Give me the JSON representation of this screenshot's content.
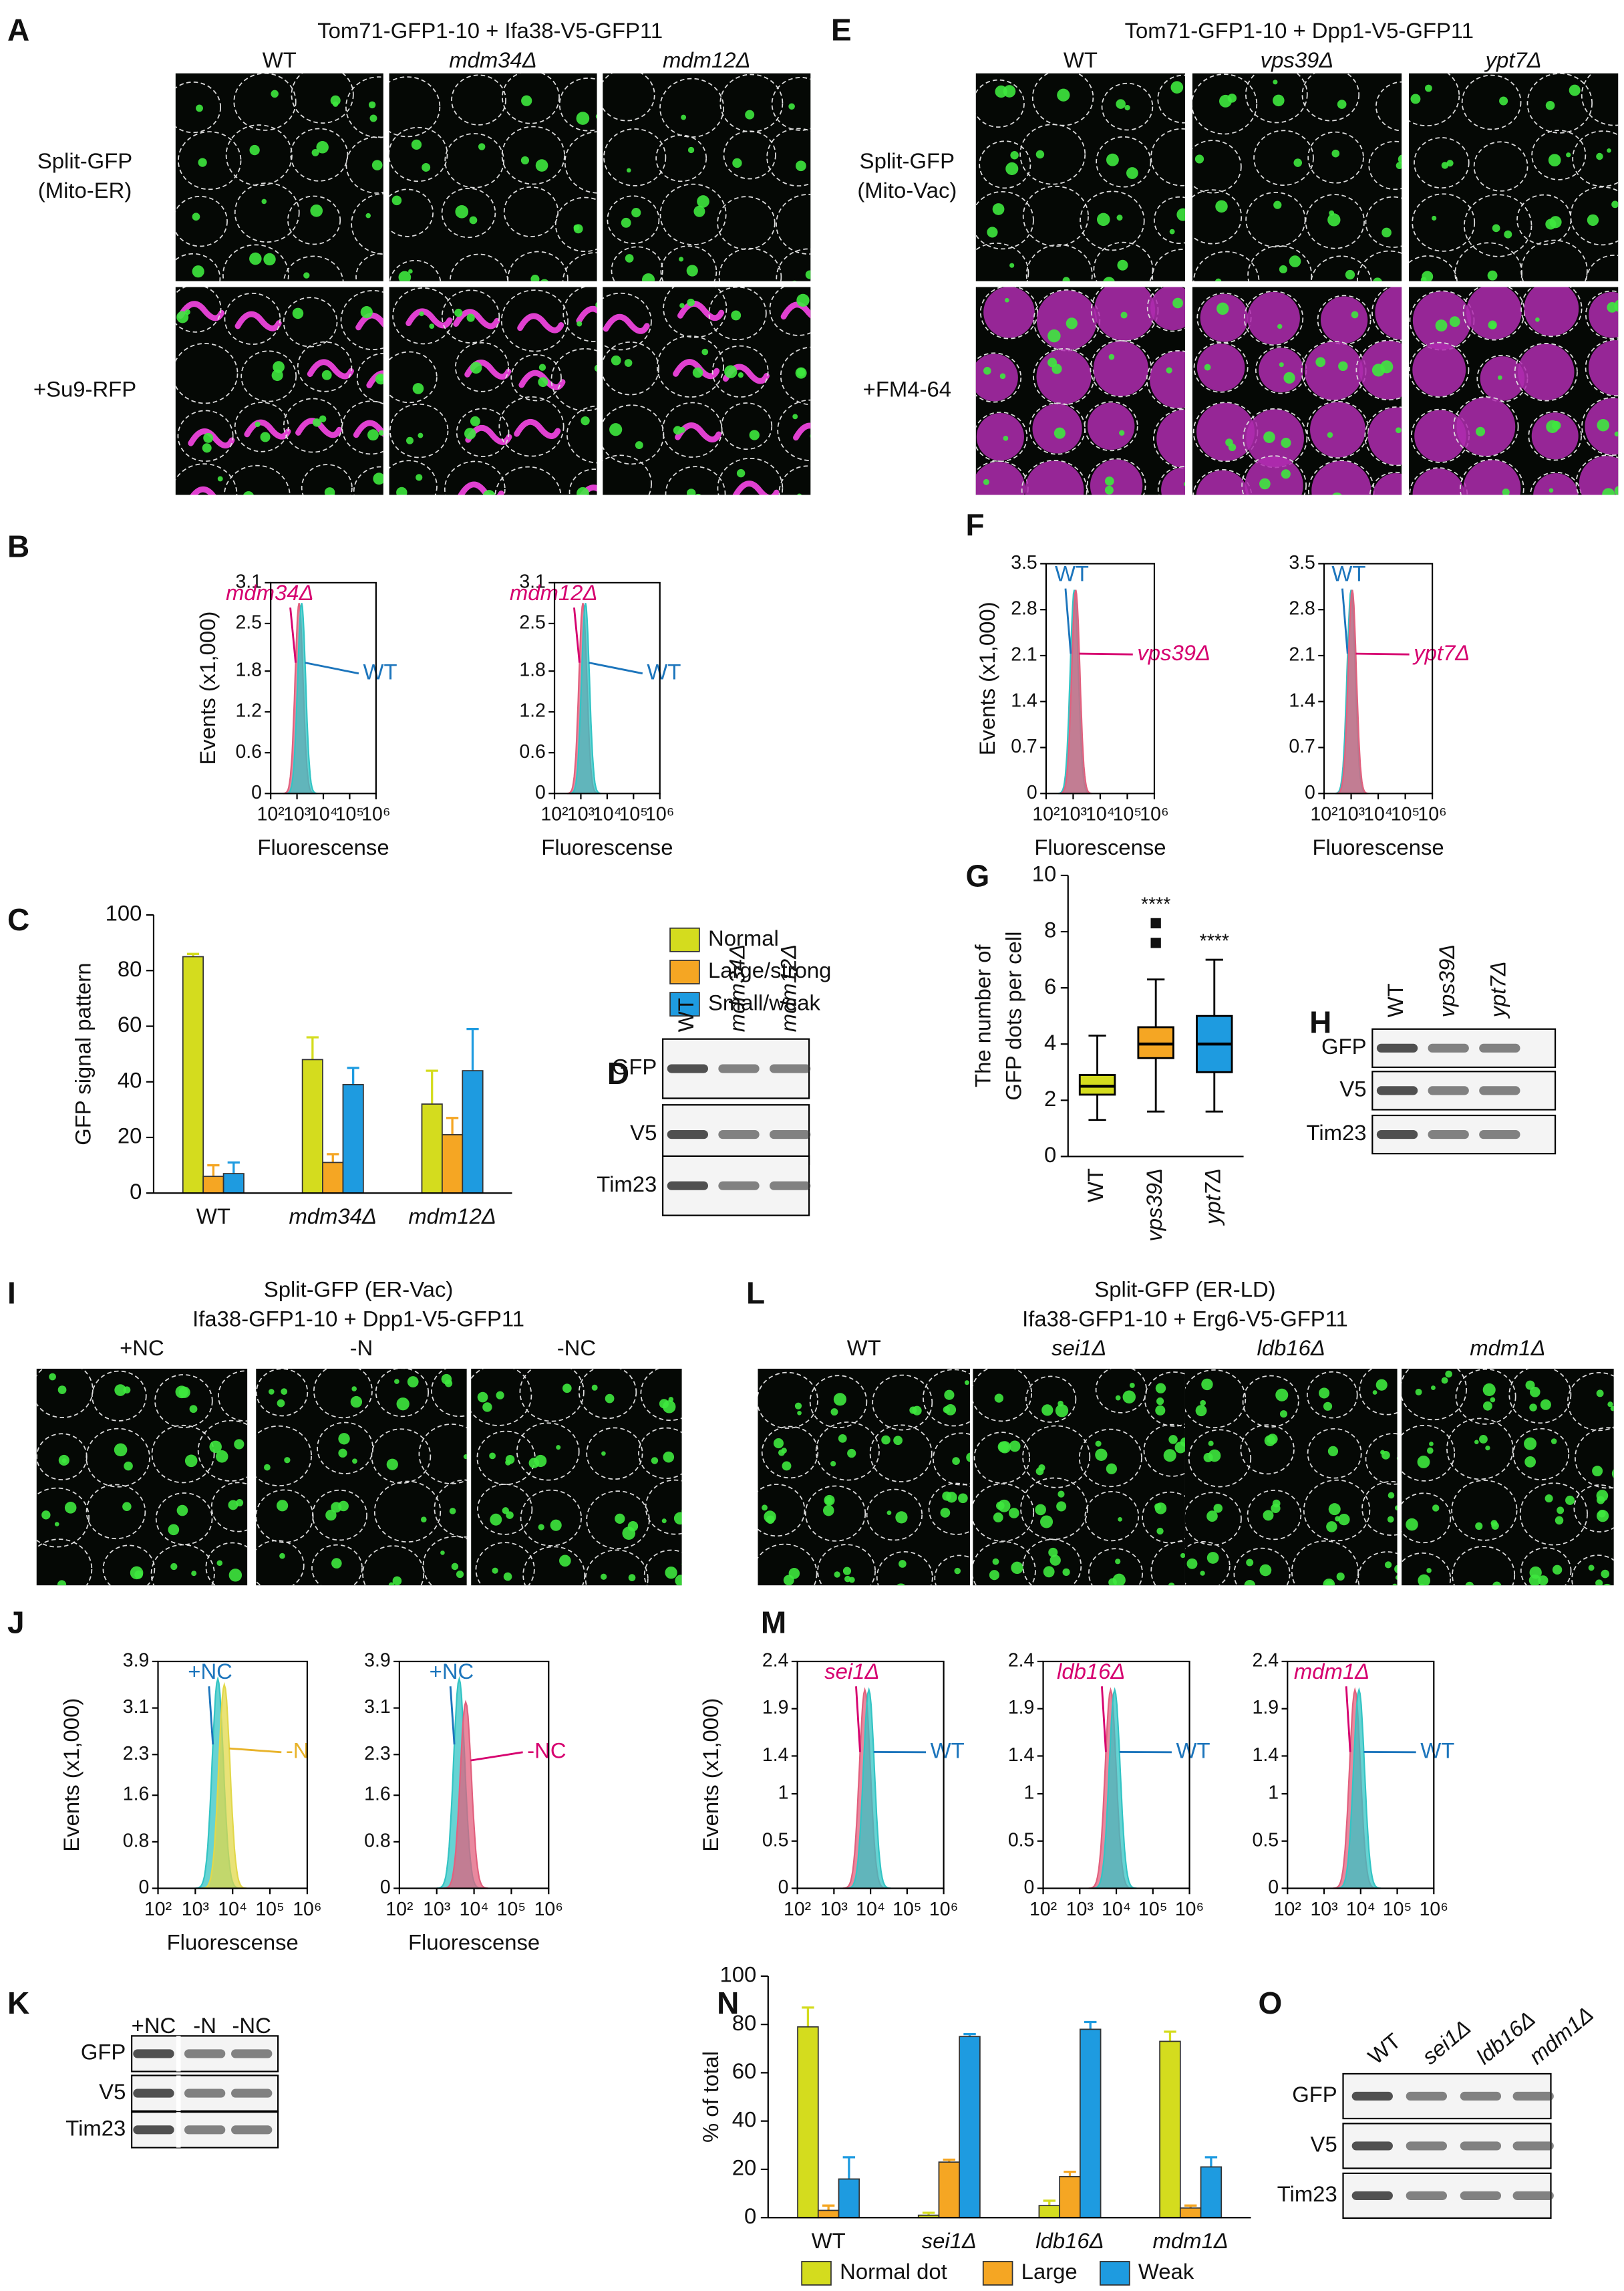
{
  "A": {
    "letter": "A",
    "title": [
      "Tom71-GFP1-10 + Ifa38-V5-GFP11"
    ],
    "columns": [
      "WT",
      "mdm34Δ",
      "mdm12Δ"
    ],
    "rows": [
      [
        "Split-GFP",
        "(Mito-ER)"
      ],
      [
        "+Su9-RFP"
      ]
    ]
  },
  "E": {
    "letter": "E",
    "title": [
      "Tom71-GFP1-10 + Dpp1-V5-GFP11"
    ],
    "columns": [
      "WT",
      "vps39Δ",
      "ypt7Δ"
    ],
    "rows": [
      [
        "Split-GFP",
        "(Mito-Vac)"
      ],
      [
        "+FM4-64"
      ]
    ]
  },
  "I": {
    "letter": "I",
    "title": [
      "Split-GFP (ER-Vac)",
      "Ifa38-GFP1-10 + Dpp1-V5-GFP11"
    ],
    "columns": [
      "+NC",
      "-N",
      "-NC"
    ]
  },
  "L": {
    "letter": "L",
    "title": [
      "Split-GFP (ER-LD)",
      "Ifa38-GFP1-10 + Erg6-V5-GFP11"
    ],
    "columns": [
      "WT",
      "sei1Δ",
      "ldb16Δ",
      "mdm1Δ"
    ]
  },
  "B": {
    "letter": "B",
    "ylabel": "Events (x1,000)",
    "charts": [
      {
        "type": "histogram",
        "xlabel": "Fluorescense",
        "xscale": "log",
        "xlim": [
          100,
          1000000
        ],
        "xticks": [
          {
            "value": 100,
            "label": "10²"
          },
          {
            "value": 1000,
            "label": "10³"
          },
          {
            "value": 10000,
            "label": "10⁴"
          },
          {
            "value": 100000,
            "label": "10⁵"
          },
          {
            "value": 1000000,
            "label": "10⁶"
          }
        ],
        "ylim": [
          0,
          3.1
        ],
        "yticks": [
          0,
          0.6,
          1.2,
          1.8,
          2.5,
          3.1
        ],
        "series": [
          {
            "name": "mdm34Δ",
            "color": "#d6006f",
            "fill": "#e2607e",
            "peak": 1200,
            "height": 2.8
          },
          {
            "name": "WT",
            "color": "#1c75bc",
            "fill": "#33c4c4",
            "peak": 1500,
            "height": 2.8
          }
        ]
      },
      {
        "type": "histogram",
        "xlabel": "Fluorescense",
        "xscale": "log",
        "xlim": [
          100,
          1000000
        ],
        "xticks": [
          {
            "value": 100,
            "label": "10²"
          },
          {
            "value": 1000,
            "label": "10³"
          },
          {
            "value": 10000,
            "label": "10⁴"
          },
          {
            "value": 100000,
            "label": "10⁵"
          },
          {
            "value": 1000000,
            "label": "10⁶"
          }
        ],
        "ylim": [
          0,
          3.1
        ],
        "yticks": [
          0,
          0.6,
          1.2,
          1.8,
          2.5,
          3.1
        ],
        "series": [
          {
            "name": "mdm12Δ",
            "color": "#d6006f",
            "fill": "#e2607e",
            "peak": 1200,
            "height": 2.8
          },
          {
            "name": "WT",
            "color": "#1c75bc",
            "fill": "#33c4c4",
            "peak": 1500,
            "height": 2.8
          }
        ]
      }
    ]
  },
  "F": {
    "letter": "F",
    "ylabel": "Events (x1,000)",
    "charts": [
      {
        "type": "histogram",
        "xlabel": "Fluorescense",
        "xscale": "log",
        "xlim": [
          100,
          1000000
        ],
        "xticks": [
          {
            "value": 100,
            "label": "10²"
          },
          {
            "value": 1000,
            "label": "10³"
          },
          {
            "value": 10000,
            "label": "10⁴"
          },
          {
            "value": 100000,
            "label": "10⁵"
          },
          {
            "value": 1000000,
            "label": "10⁶"
          }
        ],
        "ylim": [
          0,
          3.5
        ],
        "yticks": [
          0,
          0.7,
          1.4,
          2.1,
          2.8,
          3.5
        ],
        "series": [
          {
            "name": "WT",
            "color": "#1c75bc",
            "fill": "#33c4c4",
            "peak": 1100,
            "height": 3.1
          },
          {
            "name": "vps39Δ",
            "color": "#d6006f",
            "fill": "#e2607e",
            "peak": 1250,
            "height": 3.1
          }
        ]
      },
      {
        "type": "histogram",
        "xlabel": "Fluorescense",
        "xscale": "log",
        "xlim": [
          100,
          1000000
        ],
        "xticks": [
          {
            "value": 100,
            "label": "10²"
          },
          {
            "value": 1000,
            "label": "10³"
          },
          {
            "value": 10000,
            "label": "10⁴"
          },
          {
            "value": 100000,
            "label": "10⁵"
          },
          {
            "value": 1000000,
            "label": "10⁶"
          }
        ],
        "ylim": [
          0,
          3.5
        ],
        "yticks": [
          0,
          0.7,
          1.4,
          2.1,
          2.8,
          3.5
        ],
        "series": [
          {
            "name": "WT",
            "color": "#1c75bc",
            "fill": "#33c4c4",
            "peak": 1000,
            "height": 3.1
          },
          {
            "name": "ypt7Δ",
            "color": "#d6006f",
            "fill": "#e2607e",
            "peak": 1100,
            "height": 3.1
          }
        ]
      }
    ]
  },
  "J": {
    "letter": "J",
    "ylabel": "Events (x1,000)",
    "charts": [
      {
        "type": "histogram",
        "xlabel": "Fluorescense",
        "xscale": "log",
        "xlim": [
          100,
          1000000
        ],
        "xticks": [
          {
            "value": 100,
            "label": "10²"
          },
          {
            "value": 1000,
            "label": "10³"
          },
          {
            "value": 10000,
            "label": "10⁴"
          },
          {
            "value": 100000,
            "label": "10⁵"
          },
          {
            "value": 1000000,
            "label": "10⁶"
          }
        ],
        "ylim": [
          0,
          3.9
        ],
        "yticks": [
          0,
          0.8,
          1.6,
          2.3,
          3.1,
          3.9
        ],
        "series": [
          {
            "name": "+NC",
            "color": "#1c75bc",
            "fill": "#33c4c4",
            "peak": 4000,
            "height": 3.6
          },
          {
            "name": "-N",
            "color": "#e8b32a",
            "fill": "#e2d84a",
            "peak": 6000,
            "height": 3.5
          }
        ]
      },
      {
        "type": "histogram",
        "xlabel": "Fluorescense",
        "xscale": "log",
        "xlim": [
          100,
          1000000
        ],
        "xticks": [
          {
            "value": 100,
            "label": "10²"
          },
          {
            "value": 1000,
            "label": "10³"
          },
          {
            "value": 10000,
            "label": "10⁴"
          },
          {
            "value": 100000,
            "label": "10⁵"
          },
          {
            "value": 1000000,
            "label": "10⁶"
          }
        ],
        "ylim": [
          0,
          3.9
        ],
        "yticks": [
          0,
          0.8,
          1.6,
          2.3,
          3.1,
          3.9
        ],
        "series": [
          {
            "name": "+NC",
            "color": "#1c75bc",
            "fill": "#33c4c4",
            "peak": 4000,
            "height": 3.6
          },
          {
            "name": "-NC",
            "color": "#d6006f",
            "fill": "#e2607e",
            "peak": 6000,
            "height": 3.2
          }
        ]
      }
    ]
  },
  "M": {
    "letter": "M",
    "ylabel": "Events (x1,000)",
    "charts": [
      {
        "type": "histogram",
        "xlabel": "",
        "xscale": "log",
        "xlim": [
          100,
          1000000
        ],
        "xticks": [
          {
            "value": 100,
            "label": "10²"
          },
          {
            "value": 1000,
            "label": "10³"
          },
          {
            "value": 10000,
            "label": "10⁴"
          },
          {
            "value": 100000,
            "label": "10⁵"
          },
          {
            "value": 1000000,
            "label": "10⁶"
          }
        ],
        "ylim": [
          0,
          2.4
        ],
        "yticks": [
          0,
          0.5,
          1.0,
          1.4,
          1.9,
          2.4
        ],
        "series": [
          {
            "name": "sei1Δ",
            "color": "#d6006f",
            "fill": "#e2607e",
            "peak": 7000,
            "height": 2.1
          },
          {
            "name": "WT",
            "color": "#1c75bc",
            "fill": "#33c4c4",
            "peak": 9000,
            "height": 2.1
          }
        ]
      },
      {
        "type": "histogram",
        "xlabel": "",
        "xscale": "log",
        "xlim": [
          100,
          1000000
        ],
        "xticks": [
          {
            "value": 100,
            "label": "10²"
          },
          {
            "value": 1000,
            "label": "10³"
          },
          {
            "value": 10000,
            "label": "10⁴"
          },
          {
            "value": 100000,
            "label": "10⁵"
          },
          {
            "value": 1000000,
            "label": "10⁶"
          }
        ],
        "ylim": [
          0,
          2.4
        ],
        "yticks": [
          0,
          0.5,
          1.0,
          1.4,
          1.9,
          2.4
        ],
        "series": [
          {
            "name": "ldb16Δ",
            "color": "#d6006f",
            "fill": "#e2607e",
            "peak": 7000,
            "height": 2.1
          },
          {
            "name": "WT",
            "color": "#1c75bc",
            "fill": "#33c4c4",
            "peak": 9000,
            "height": 2.1
          }
        ]
      },
      {
        "type": "histogram",
        "xlabel": "",
        "xscale": "log",
        "xlim": [
          100,
          1000000
        ],
        "xticks": [
          {
            "value": 100,
            "label": "10²"
          },
          {
            "value": 1000,
            "label": "10³"
          },
          {
            "value": 10000,
            "label": "10⁴"
          },
          {
            "value": 100000,
            "label": "10⁵"
          },
          {
            "value": 1000000,
            "label": "10⁶"
          }
        ],
        "ylim": [
          0,
          2.4
        ],
        "yticks": [
          0,
          0.5,
          1.0,
          1.4,
          1.9,
          2.4
        ],
        "series": [
          {
            "name": "mdm1Δ",
            "color": "#d6006f",
            "fill": "#e2607e",
            "peak": 7000,
            "height": 2.1
          },
          {
            "name": "WT",
            "color": "#1c75bc",
            "fill": "#33c4c4",
            "peak": 9000,
            "height": 2.1
          }
        ]
      }
    ]
  },
  "C": {
    "letter": "C",
    "chart": {
      "type": "bar",
      "ylabel": "GFP signal pattern",
      "categories": [
        "WT",
        "mdm34Δ",
        "mdm12Δ"
      ],
      "ylim": [
        0,
        100
      ],
      "yticks": [
        0,
        20,
        40,
        60,
        80,
        100
      ],
      "series": [
        {
          "name": "Normal",
          "color": "#d4dc1e",
          "values": [
            85,
            48,
            32
          ],
          "errors": [
            1,
            8,
            12
          ]
        },
        {
          "name": "Large/strong",
          "color": "#f5a623",
          "values": [
            6,
            11,
            21
          ],
          "errors": [
            4,
            3,
            6
          ]
        },
        {
          "name": "Small/weak",
          "color": "#1e9be0",
          "values": [
            7,
            39,
            44
          ],
          "errors": [
            4,
            6,
            15
          ]
        }
      ]
    }
  },
  "N": {
    "letter": "N",
    "chart": {
      "type": "bar",
      "ylabel": "% of total",
      "categories": [
        "WT",
        "sei1Δ",
        "ldb16Δ",
        "mdm1Δ"
      ],
      "ylim": [
        0,
        100
      ],
      "yticks": [
        0,
        20,
        40,
        60,
        80,
        100
      ],
      "series": [
        {
          "name": "Normal dot",
          "color": "#d4dc1e",
          "values": [
            79,
            1,
            5,
            73
          ],
          "errors": [
            8,
            1,
            2,
            4
          ]
        },
        {
          "name": "Large",
          "color": "#f5a623",
          "values": [
            3,
            23,
            17,
            4
          ],
          "errors": [
            2,
            1,
            2,
            1
          ]
        },
        {
          "name": "Weak",
          "color": "#1e9be0",
          "values": [
            16,
            75,
            78,
            21
          ],
          "errors": [
            9,
            1,
            3,
            4
          ]
        }
      ]
    }
  },
  "G": {
    "letter": "G",
    "chart": {
      "type": "box",
      "ylabel": [
        "The number of",
        "GFP dots per cell"
      ],
      "categories": [
        "WT",
        "vps39Δ",
        "ypt7Δ"
      ],
      "ylim": [
        0,
        10
      ],
      "yticks": [
        0,
        2,
        4,
        6,
        8,
        10
      ],
      "boxes": [
        {
          "min": 1.3,
          "q1": 2.2,
          "median": 2.5,
          "q3": 2.9,
          "max": 4.3,
          "color": "#d4dc1e"
        },
        {
          "min": 1.6,
          "q1": 3.5,
          "median": 4.0,
          "q3": 4.6,
          "max": 6.3,
          "outliers": [
            7.6,
            8.3
          ],
          "label": "****",
          "color": "#f5a623"
        },
        {
          "min": 1.6,
          "q1": 3.0,
          "median": 4.0,
          "q3": 5.0,
          "max": 7.0,
          "label": "****",
          "color": "#1e9be0"
        }
      ]
    }
  },
  "D": {
    "letter": "D",
    "lanes": [
      "WT",
      "mdm34Δ",
      "mdm12Δ"
    ],
    "rows": [
      "GFP",
      "V5",
      "Tim23"
    ]
  },
  "H": {
    "letter": "H",
    "lanes": [
      "WT",
      "vps39Δ",
      "ypt7Δ"
    ],
    "rows": [
      "GFP",
      "V5",
      "Tim23"
    ]
  },
  "K": {
    "letter": "K",
    "lanes": [
      "+NC",
      "-N",
      "-NC"
    ],
    "rows": [
      "GFP",
      "V5",
      "Tim23"
    ]
  },
  "O": {
    "letter": "O",
    "lanes": [
      "WT",
      "sei1Δ",
      "ldb16Δ",
      "mdm1Δ"
    ],
    "rows": [
      "GFP",
      "V5",
      "Tim23"
    ]
  }
}
